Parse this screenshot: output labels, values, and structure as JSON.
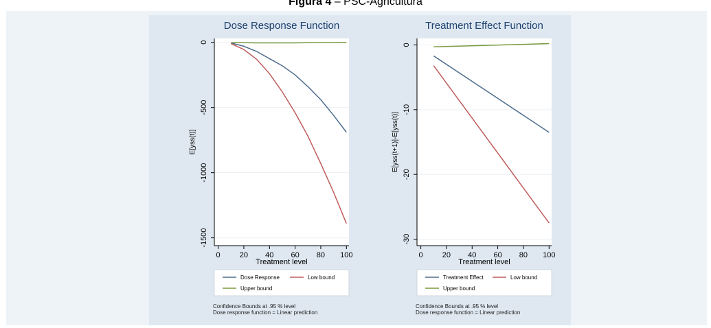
{
  "figure": {
    "label": "Figura 4",
    "rest": " – PSC-Agricultura"
  },
  "colors": {
    "dose": "#4e6d8d",
    "low": "#c05b5b",
    "upper": "#7a9a3f",
    "grid": "#eaf0f5"
  },
  "chart_data": [
    {
      "type": "line",
      "title": "Dose Response Function",
      "xlabel": "Treatment level",
      "ylabel": "E[yss(t)]",
      "xlim": [
        -3,
        102
      ],
      "ylim": [
        -1560,
        30
      ],
      "xticks": [
        0,
        20,
        40,
        60,
        80,
        100
      ],
      "xtick_labels": [
        "0",
        "20",
        "40",
        "60",
        "80",
        "100"
      ],
      "yticks": [
        0,
        -500,
        -1000,
        -1500
      ],
      "ytick_labels": [
        "0",
        "-500",
        "-1000",
        "-1500"
      ],
      "x": [
        10,
        20,
        30,
        40,
        50,
        60,
        70,
        80,
        90,
        100
      ],
      "series": [
        {
          "name": "Dose Response",
          "values": [
            -5,
            -30,
            -70,
            -125,
            -180,
            -250,
            -340,
            -440,
            -560,
            -690
          ]
        },
        {
          "name": "Low bound",
          "values": [
            -10,
            -55,
            -130,
            -240,
            -380,
            -540,
            -720,
            -930,
            -1150,
            -1390
          ]
        },
        {
          "name": "Upper bound",
          "values": [
            -2,
            -3,
            -4,
            -4,
            -4,
            -4,
            -3,
            -3,
            -2,
            -1
          ]
        }
      ],
      "legend": "bottom",
      "notes": [
        "Confidence Bounds at .95 % level",
        "Dose response function = Linear prediction"
      ]
    },
    {
      "type": "line",
      "title": "Treatment Effect Function",
      "xlabel": "Treatment level",
      "ylabel": "E[yss(t+1)]-E[yss(t)]",
      "xlim": [
        -3,
        102
      ],
      "ylim": [
        -31,
        1
      ],
      "xticks": [
        0,
        20,
        40,
        60,
        80,
        100
      ],
      "xtick_labels": [
        "0",
        "20",
        "40",
        "60",
        "80",
        "100"
      ],
      "yticks": [
        0,
        -10,
        -20,
        -30
      ],
      "ytick_labels": [
        "0",
        "-10",
        "-20",
        "-30"
      ],
      "x": [
        10,
        100
      ],
      "series": [
        {
          "name": "Treatment Effect",
          "values": [
            -1.7,
            -13.5
          ]
        },
        {
          "name": "Low bound",
          "values": [
            -3.2,
            -27.5
          ]
        },
        {
          "name": "Upper bound",
          "values": [
            -0.3,
            0.2
          ]
        }
      ],
      "legend": "bottom",
      "notes": [
        "Confidence Bounds at .95 % level",
        "Dose response function = Linear prediction"
      ]
    }
  ]
}
